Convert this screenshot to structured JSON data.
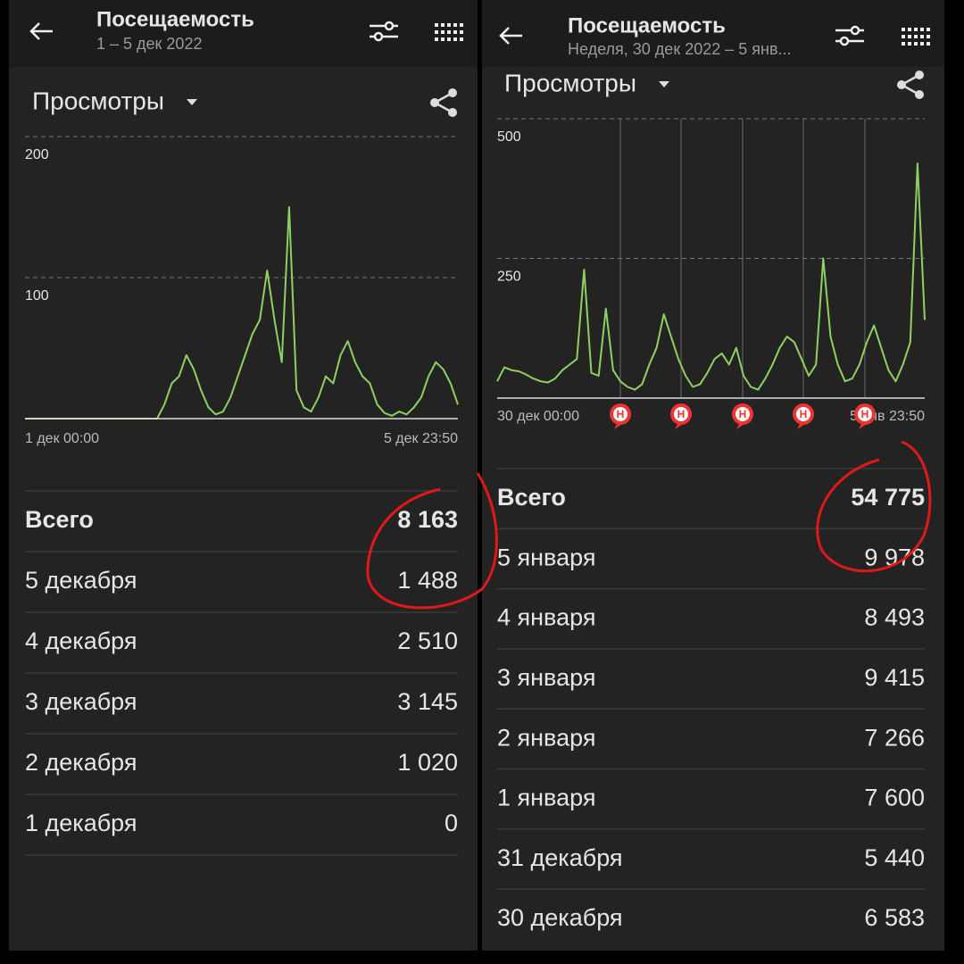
{
  "screens": [
    {
      "header": {
        "title": "Посещаемость",
        "subtitle": "1 – 5 дек 2022"
      },
      "metric": "Просмотры",
      "chart": {
        "type": "line",
        "color": "#8fd160",
        "ylim": [
          0,
          200
        ],
        "yticks": [
          100,
          200
        ],
        "grid": true,
        "xlabels": [
          "1 дек 00:00",
          "5 дек 23:50"
        ],
        "values": [
          0,
          0,
          0,
          0,
          0,
          0,
          0,
          0,
          0,
          0,
          0,
          0,
          0,
          0,
          0,
          0,
          0,
          0,
          0,
          10,
          25,
          30,
          45,
          35,
          20,
          8,
          3,
          5,
          15,
          30,
          45,
          60,
          70,
          105,
          70,
          40,
          150,
          20,
          8,
          5,
          15,
          30,
          25,
          45,
          55,
          40,
          30,
          25,
          10,
          4,
          2,
          5,
          3,
          8,
          15,
          30,
          40,
          35,
          25,
          10
        ]
      },
      "table": {
        "rows": [
          [
            "Всего",
            "8 163"
          ],
          [
            "5 декабря",
            "1 488"
          ],
          [
            "4 декабря",
            "2 510"
          ],
          [
            "3 декабря",
            "3 145"
          ],
          [
            "2 декабря",
            "1 020"
          ],
          [
            "1 декабря",
            "0"
          ]
        ]
      }
    },
    {
      "header": {
        "title": "Посещаемость",
        "subtitle": "Неделя, 30 дек 2022 – 5 янв..."
      },
      "metric": "Просмотры",
      "chart": {
        "type": "line",
        "color": "#8fd160",
        "ylim": [
          0,
          500
        ],
        "yticks": [
          250,
          500
        ],
        "grid": true,
        "xlabels": [
          "30 дек 00:00",
          "5 янв 23:50"
        ],
        "markers": [
          "Н",
          "Н",
          "Н",
          "Н",
          "Н"
        ],
        "values": [
          30,
          55,
          50,
          48,
          42,
          35,
          30,
          28,
          35,
          50,
          60,
          70,
          230,
          45,
          40,
          160,
          50,
          30,
          20,
          15,
          25,
          60,
          90,
          150,
          110,
          70,
          40,
          20,
          25,
          45,
          70,
          80,
          60,
          90,
          40,
          20,
          15,
          35,
          60,
          90,
          110,
          100,
          70,
          40,
          60,
          250,
          110,
          60,
          30,
          35,
          60,
          100,
          130,
          90,
          50,
          30,
          60,
          100,
          420,
          140
        ]
      },
      "table": {
        "rows": [
          [
            "Всего",
            "54 775"
          ],
          [
            "5 января",
            "9 978"
          ],
          [
            "4 января",
            "8 493"
          ],
          [
            "3 января",
            "9 415"
          ],
          [
            "2 января",
            "7 266"
          ],
          [
            "1 января",
            "7 600"
          ],
          [
            "31 декабря",
            "5 440"
          ],
          [
            "30 декабря",
            "6 583"
          ]
        ]
      }
    }
  ]
}
